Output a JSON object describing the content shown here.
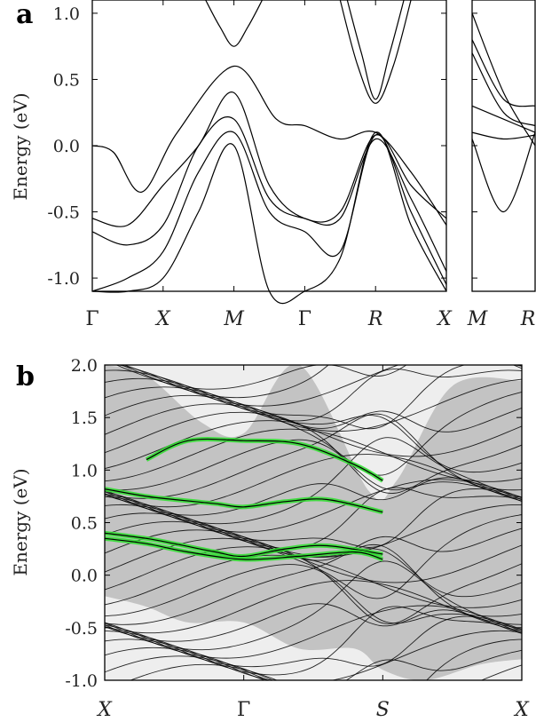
{
  "chart_data": [
    {
      "type": "line",
      "panel_label": "a",
      "ylabel": "Energy (eV)",
      "ylim": [
        -1.1,
        1.1
      ],
      "yticks": [
        {
          "value": 1.0,
          "label": "1.0"
        },
        {
          "value": 0.5,
          "label": "0.5"
        },
        {
          "value": 0.0,
          "label": "0.0"
        },
        {
          "value": -0.5,
          "label": "-0.5"
        },
        {
          "value": -1.0,
          "label": "-1.0"
        }
      ],
      "kpoints_main": [
        "Γ",
        "X",
        "M",
        "Γ",
        "R",
        "X"
      ],
      "kpoints_side": [
        "M",
        "R"
      ],
      "grid": false,
      "bands_main": [
        {
          "x": [
            0,
            0.3,
            0.7,
            1.2,
            2,
            2.6,
            3,
            3.5,
            4,
            4.5,
            5
          ],
          "y": [
            0,
            -0.05,
            -0.35,
            0.1,
            0.6,
            0.2,
            0.15,
            0.05,
            0.1,
            -0.2,
            -0.6
          ]
        },
        {
          "x": [
            0,
            0.5,
            1,
            1.5,
            2,
            2.5,
            3,
            3.5,
            4,
            4.5,
            5
          ],
          "y": [
            -0.55,
            -0.6,
            -0.3,
            0.0,
            0.4,
            -0.3,
            -0.55,
            -0.5,
            0.08,
            -0.3,
            -0.55
          ]
        },
        {
          "x": [
            0,
            0.5,
            1,
            1.5,
            2,
            2.5,
            3,
            3.5,
            4,
            4.5,
            5
          ],
          "y": [
            -0.65,
            -0.75,
            -0.6,
            0.0,
            0.2,
            -0.4,
            -0.55,
            -0.55,
            0.05,
            -0.4,
            -0.95
          ]
        },
        {
          "x": [
            0,
            0.5,
            1,
            1.5,
            2,
            2.5,
            3,
            3.5,
            4,
            4.5,
            5
          ],
          "y": [
            -1.1,
            -1.0,
            -0.8,
            -0.2,
            0.1,
            -0.5,
            -0.65,
            -0.8,
            0.08,
            -0.5,
            -1.05
          ]
        },
        {
          "x": [
            0,
            0.5,
            1,
            1.5,
            2,
            2.5,
            3,
            3.5,
            4,
            4.5,
            5
          ],
          "y": [
            -1.1,
            -1.1,
            -1.0,
            -0.5,
            0.0,
            -1.1,
            -1.1,
            -0.85,
            0.1,
            -0.6,
            -1.1
          ]
        },
        {
          "x": [
            1.6,
            1.8,
            2,
            2.2,
            2.4
          ],
          "y": [
            1.1,
            0.9,
            0.75,
            0.9,
            1.1
          ]
        },
        {
          "x": [
            3.6,
            3.8,
            4,
            4.2,
            4.4
          ],
          "y": [
            1.1,
            0.7,
            0.35,
            0.7,
            1.1
          ]
        },
        {
          "x": [
            3.5,
            3.75,
            4,
            4.25,
            4.5
          ],
          "y": [
            1.1,
            0.6,
            0.32,
            0.6,
            1.1
          ]
        }
      ],
      "bands_side": [
        {
          "x": [
            0,
            0.5,
            1
          ],
          "y": [
            0.05,
            -0.5,
            0.1
          ]
        },
        {
          "x": [
            0,
            0.5,
            1
          ],
          "y": [
            0.8,
            0.35,
            0.3
          ]
        },
        {
          "x": [
            0,
            0.5,
            1
          ],
          "y": [
            0.7,
            0.25,
            0.15
          ]
        },
        {
          "x": [
            0,
            0.5,
            1
          ],
          "y": [
            1.0,
            0.4,
            0.0
          ]
        },
        {
          "x": [
            0,
            0.5,
            1
          ],
          "y": [
            0.3,
            0.2,
            0.1
          ]
        },
        {
          "x": [
            0,
            0.5,
            1
          ],
          "y": [
            0.1,
            0.05,
            0.08
          ]
        }
      ]
    },
    {
      "type": "line",
      "panel_label": "b",
      "ylabel": "Energy (eV)",
      "ylim": [
        -1.0,
        2.0
      ],
      "yticks": [
        {
          "value": 2.0,
          "label": "2.0"
        },
        {
          "value": 1.5,
          "label": "1.5"
        },
        {
          "value": 1.0,
          "label": "1.0"
        },
        {
          "value": 0.5,
          "label": "0.5"
        },
        {
          "value": 0.0,
          "label": "0.0"
        },
        {
          "value": -0.5,
          "label": "-0.5"
        },
        {
          "value": -1.0,
          "label": "-1.0"
        }
      ],
      "kpoints": [
        "X",
        "Γ",
        "S",
        "X"
      ],
      "grid": false,
      "surface_bands": [
        {
          "x": [
            0,
            0.3,
            0.5,
            0.8,
            1,
            1.3,
            1.6,
            2
          ],
          "y": [
            0.82,
            0.75,
            0.72,
            0.68,
            0.65,
            0.7,
            0.72,
            0.6
          ]
        },
        {
          "x": [
            0,
            0.3,
            0.5,
            0.8,
            1,
            1.3,
            1.6,
            2
          ],
          "y": [
            0.4,
            0.35,
            0.3,
            0.22,
            0.18,
            0.25,
            0.28,
            0.2
          ]
        },
        {
          "x": [
            0.3,
            0.6,
            1,
            1.4,
            1.8,
            2
          ],
          "y": [
            1.1,
            1.28,
            1.28,
            1.25,
            1.05,
            0.9
          ]
        },
        {
          "x": [
            0,
            0.3,
            0.6,
            1,
            1.4,
            1.8,
            2
          ],
          "y": [
            0.35,
            0.3,
            0.22,
            0.15,
            0.18,
            0.22,
            0.15
          ]
        }
      ]
    }
  ]
}
